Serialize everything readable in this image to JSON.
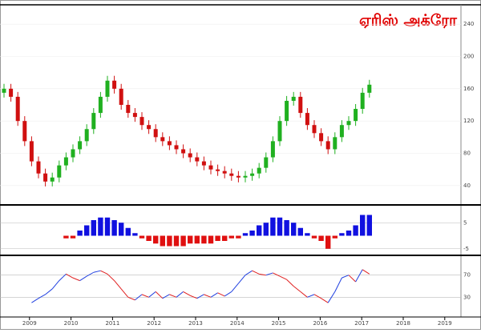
{
  "chart_data": [
    {
      "type": "candlestick",
      "title": "ஏரிஸ் அக்ரோ",
      "open": [
        155,
        160,
        150,
        120,
        95,
        70,
        55,
        45,
        50,
        65,
        75,
        85,
        95,
        110,
        130,
        150,
        170,
        160,
        140,
        130,
        125,
        115,
        110,
        100,
        95,
        90,
        85,
        80,
        75,
        70,
        65,
        60,
        58,
        55,
        52,
        50,
        52,
        55,
        62,
        75,
        95,
        120,
        145,
        150,
        130,
        115,
        105,
        95,
        85,
        100,
        115,
        120,
        135,
        155
      ],
      "high": [
        166,
        166,
        156,
        126,
        101,
        76,
        61,
        56,
        71,
        81,
        91,
        101,
        116,
        136,
        156,
        176,
        176,
        166,
        146,
        136,
        131,
        121,
        116,
        106,
        101,
        96,
        91,
        86,
        81,
        76,
        71,
        66,
        64,
        61,
        58,
        58,
        61,
        68,
        81,
        101,
        126,
        151,
        156,
        156,
        136,
        121,
        111,
        101,
        106,
        121,
        126,
        141,
        161,
        171
      ],
      "low": [
        149,
        144,
        114,
        89,
        64,
        49,
        39,
        39,
        44,
        59,
        69,
        79,
        89,
        104,
        124,
        144,
        154,
        134,
        124,
        119,
        109,
        104,
        94,
        89,
        84,
        79,
        74,
        69,
        64,
        59,
        54,
        52,
        49,
        46,
        44,
        44,
        46,
        49,
        56,
        69,
        89,
        114,
        139,
        124,
        109,
        99,
        89,
        79,
        79,
        94,
        109,
        114,
        129,
        149
      ],
      "close": [
        160,
        150,
        120,
        95,
        70,
        55,
        45,
        50,
        65,
        75,
        85,
        95,
        110,
        130,
        150,
        170,
        160,
        140,
        130,
        125,
        115,
        110,
        100,
        95,
        90,
        85,
        80,
        75,
        70,
        65,
        60,
        58,
        55,
        52,
        50,
        52,
        55,
        62,
        75,
        95,
        120,
        145,
        150,
        130,
        115,
        105,
        95,
        85,
        100,
        115,
        120,
        135,
        155,
        165
      ],
      "up_color": "#20b020",
      "down_color": "#d01010",
      "ylim": [
        20,
        260
      ],
      "yticks": [
        40,
        80,
        120,
        160,
        200,
        240
      ],
      "xlim": [
        2008.29,
        2019.39
      ],
      "xticks": [
        2009,
        2010,
        2011,
        2012,
        2013,
        2014,
        2015,
        2016,
        2017,
        2018,
        2019
      ]
    },
    {
      "type": "histogram-bar",
      "pos_color": "#1010e0",
      "neg_color": "#e01010",
      "values": [
        null,
        null,
        null,
        null,
        null,
        null,
        null,
        null,
        null,
        -1,
        -1,
        2,
        4,
        6,
        7,
        7,
        6,
        5,
        3,
        1,
        -1,
        -2,
        -3,
        -4,
        -4,
        -4,
        -4,
        -3,
        -3,
        -3,
        -3,
        -2,
        -2,
        -1,
        -1,
        1,
        2,
        4,
        5,
        7,
        7,
        6,
        5,
        3,
        1,
        -1,
        -2,
        -5,
        -1,
        1,
        2,
        4,
        8,
        8
      ],
      "ylim": [
        -6,
        10
      ],
      "yticks": [
        -5,
        5
      ]
    },
    {
      "type": "line",
      "up_color": "#2040e0",
      "down_color": "#e02020",
      "values": [
        null,
        null,
        null,
        null,
        20,
        28,
        35,
        45,
        60,
        72,
        65,
        60,
        68,
        75,
        78,
        72,
        60,
        45,
        30,
        25,
        35,
        30,
        40,
        28,
        35,
        30,
        40,
        33,
        28,
        35,
        30,
        38,
        32,
        40,
        55,
        70,
        78,
        72,
        70,
        74,
        68,
        62,
        50,
        40,
        30,
        35,
        28,
        20,
        40,
        65,
        70,
        58,
        80,
        72
      ],
      "ylim": [
        0,
        100
      ],
      "yticks": [
        30,
        70
      ]
    }
  ]
}
